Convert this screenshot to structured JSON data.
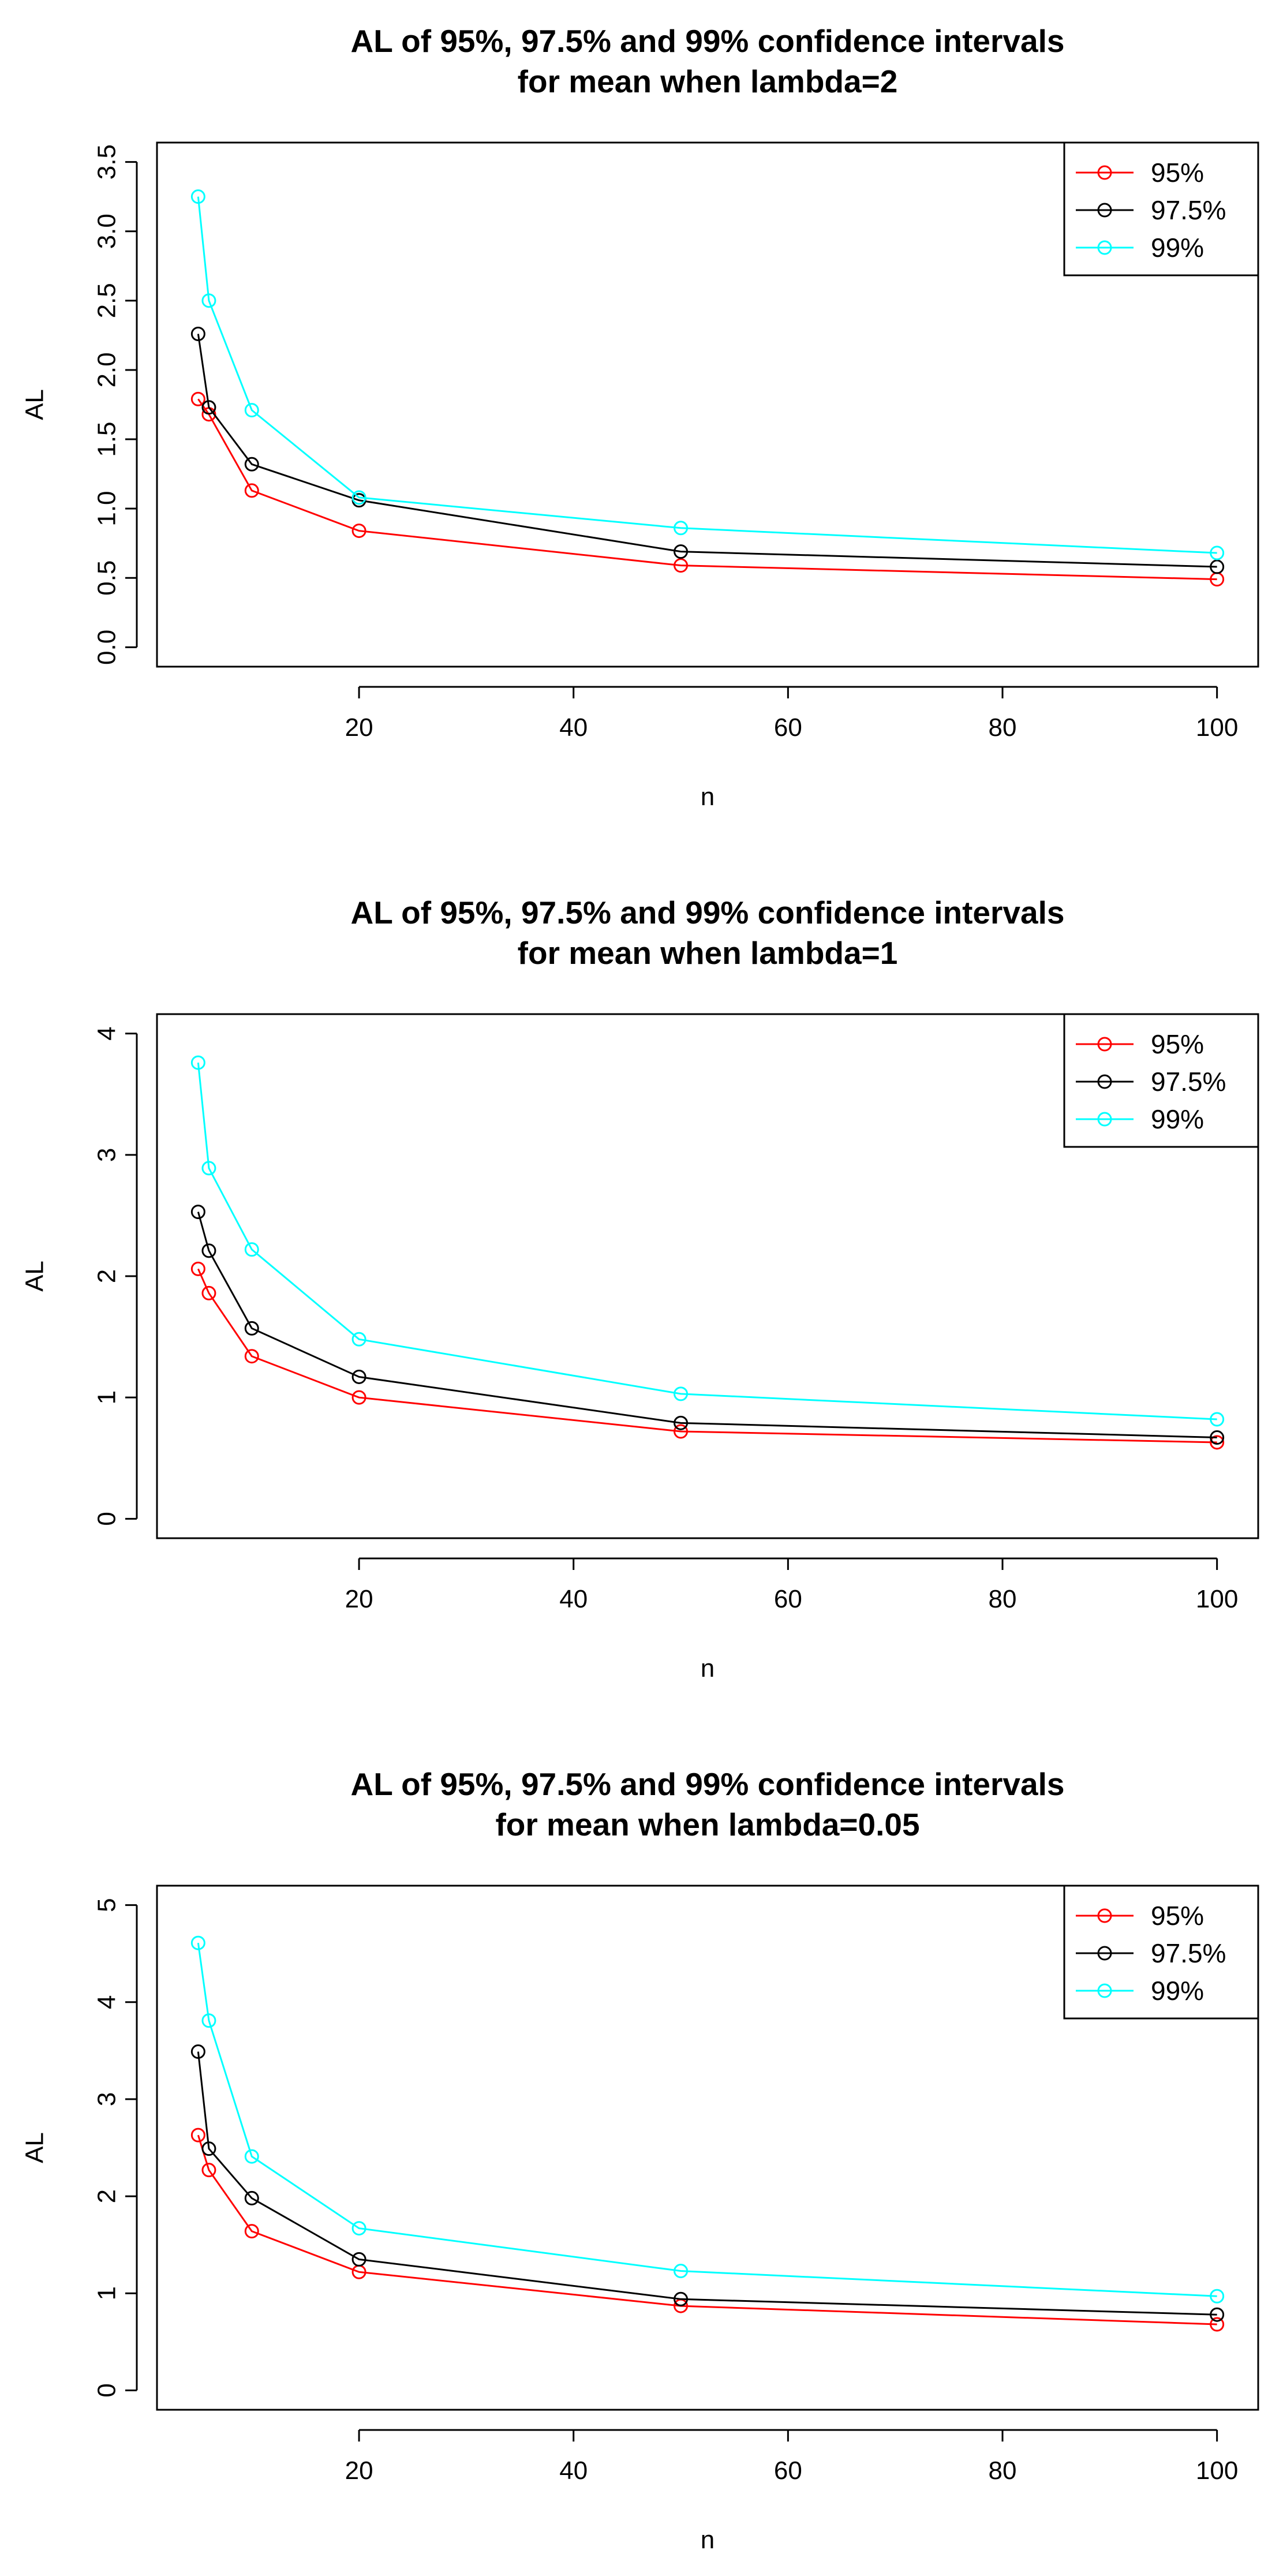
{
  "chart_data": [
    {
      "type": "line",
      "title": [
        "AL of 95%, 97.5% and 99% confidence intervals",
        "for mean when lambda=2"
      ],
      "xlabel": "n",
      "ylabel": "AL",
      "x": [
        5,
        6,
        10,
        20,
        50,
        100
      ],
      "xlim": [
        1.16,
        103.84
      ],
      "ylim": [
        0,
        3.5
      ],
      "xticks": [
        20,
        40,
        60,
        80,
        100
      ],
      "yticks": [
        0.0,
        0.5,
        1.0,
        1.5,
        2.0,
        2.5,
        3.0,
        3.5
      ],
      "ytick_labels": [
        "0.0",
        "0.5",
        "1.0",
        "1.5",
        "2.0",
        "2.5",
        "3.0",
        "3.5"
      ],
      "legend_position": "top-right",
      "series": [
        {
          "name": "95%",
          "color": "#ff0000",
          "values": [
            1.79,
            1.68,
            1.13,
            0.84,
            0.59,
            0.49
          ]
        },
        {
          "name": "97.5%",
          "color": "#000000",
          "values": [
            2.26,
            1.73,
            1.32,
            1.06,
            0.69,
            0.58
          ]
        },
        {
          "name": "99%",
          "color": "#00ffff",
          "values": [
            3.25,
            2.5,
            1.71,
            1.08,
            0.86,
            0.68
          ]
        }
      ]
    },
    {
      "type": "line",
      "title": [
        "AL of 95%, 97.5% and 99% confidence intervals",
        "for mean when lambda=1"
      ],
      "xlabel": "n",
      "ylabel": "AL",
      "x": [
        5,
        6,
        10,
        20,
        50,
        100
      ],
      "xlim": [
        1.16,
        103.84
      ],
      "ylim": [
        0,
        4
      ],
      "xticks": [
        20,
        40,
        60,
        80,
        100
      ],
      "yticks": [
        0,
        1,
        2,
        3,
        4
      ],
      "ytick_labels": [
        "0",
        "1",
        "2",
        "3",
        "4"
      ],
      "legend_position": "top-right",
      "series": [
        {
          "name": "95%",
          "color": "#ff0000",
          "values": [
            2.06,
            1.86,
            1.34,
            1.0,
            0.72,
            0.63
          ]
        },
        {
          "name": "97.5%",
          "color": "#000000",
          "values": [
            2.53,
            2.21,
            1.57,
            1.17,
            0.79,
            0.67
          ]
        },
        {
          "name": "99%",
          "color": "#00ffff",
          "values": [
            3.76,
            2.89,
            2.22,
            1.48,
            1.03,
            0.82
          ]
        }
      ]
    },
    {
      "type": "line",
      "title": [
        "AL of 95%, 97.5% and 99% confidence intervals",
        "for mean when lambda=0.05"
      ],
      "xlabel": "n",
      "ylabel": "AL",
      "x": [
        5,
        6,
        10,
        20,
        50,
        100
      ],
      "xlim": [
        1.16,
        103.84
      ],
      "ylim": [
        0,
        5
      ],
      "xticks": [
        20,
        40,
        60,
        80,
        100
      ],
      "yticks": [
        0,
        1,
        2,
        3,
        4,
        5
      ],
      "ytick_labels": [
        "0",
        "1",
        "2",
        "3",
        "4",
        "5"
      ],
      "legend_position": "top-right",
      "series": [
        {
          "name": "95%",
          "color": "#ff0000",
          "values": [
            2.63,
            2.27,
            1.64,
            1.22,
            0.87,
            0.68
          ]
        },
        {
          "name": "97.5%",
          "color": "#000000",
          "values": [
            3.49,
            2.49,
            1.98,
            1.35,
            0.94,
            0.78
          ]
        },
        {
          "name": "99%",
          "color": "#00ffff",
          "values": [
            4.61,
            3.81,
            2.41,
            1.67,
            1.23,
            0.97
          ]
        }
      ]
    }
  ]
}
